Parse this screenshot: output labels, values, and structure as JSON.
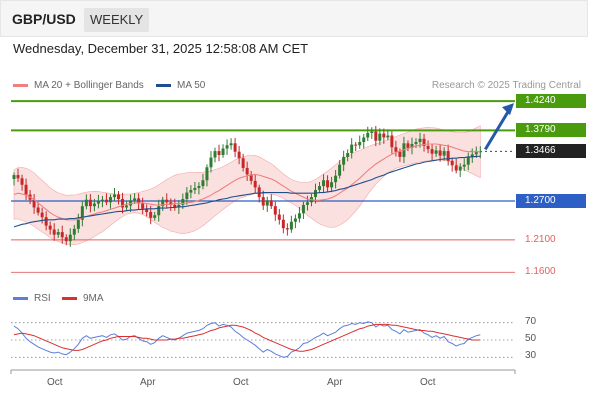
{
  "header": {
    "symbol": "GBP/USD",
    "timeframe": "WEEKLY",
    "timestamp": "Wednesday, December 31, 2025 12:58:08 AM CET"
  },
  "legend": {
    "ma20_label": "MA 20 + Bollinger Bands",
    "ma50_label": "MA 50",
    "copyright": "Research © 2025 Trading Central",
    "rsi_label": "RSI",
    "ma9_label": "9MA"
  },
  "colors": {
    "ma20": "#f08080",
    "ma50": "#1f4e8c",
    "resistance": "#4a9c0e",
    "support": "#2d5fc4",
    "lower": "#e06060",
    "up_candle": "#2e7d32",
    "down_candle": "#c62828",
    "arrow": "#2458a8",
    "rsi": "#5b7fdb",
    "rsi_ma": "#d93030"
  },
  "chart_data": [
    {
      "type": "candlestick",
      "instrument": "GBP/USD",
      "interval": "weekly",
      "ylim": [
        1.145,
        1.432
      ],
      "x_ticks": [
        "Oct",
        "Apr",
        "Oct",
        "Apr",
        "Oct"
      ],
      "last_price": 1.3466,
      "levels": [
        {
          "value": 1.424,
          "label": "1.4240",
          "kind": "resistance"
        },
        {
          "value": 1.379,
          "label": "1.3790",
          "kind": "resistance"
        },
        {
          "value": 1.3466,
          "label": "1.3466",
          "kind": "last"
        },
        {
          "value": 1.27,
          "label": "1.2700",
          "kind": "support"
        },
        {
          "value": 1.21,
          "label": "1.2100",
          "kind": "support_lower"
        },
        {
          "value": 1.16,
          "label": "1.1600",
          "kind": "support_lower"
        }
      ],
      "close": [
        1.31,
        1.305,
        1.295,
        1.28,
        1.272,
        1.26,
        1.252,
        1.245,
        1.232,
        1.226,
        1.218,
        1.222,
        1.214,
        1.208,
        1.218,
        1.227,
        1.241,
        1.262,
        1.272,
        1.262,
        1.266,
        1.27,
        1.272,
        1.268,
        1.276,
        1.28,
        1.273,
        1.26,
        1.263,
        1.271,
        1.274,
        1.266,
        1.258,
        1.253,
        1.244,
        1.248,
        1.262,
        1.272,
        1.268,
        1.264,
        1.26,
        1.264,
        1.273,
        1.283,
        1.287,
        1.29,
        1.293,
        1.302,
        1.322,
        1.337,
        1.347,
        1.341,
        1.351,
        1.356,
        1.359,
        1.346,
        1.336,
        1.321,
        1.311,
        1.301,
        1.291,
        1.276,
        1.263,
        1.271,
        1.262,
        1.249,
        1.241,
        1.228,
        1.226,
        1.238,
        1.243,
        1.251,
        1.264,
        1.268,
        1.276,
        1.287,
        1.293,
        1.302,
        1.291,
        1.299,
        1.309,
        1.326,
        1.338,
        1.344,
        1.357,
        1.356,
        1.361,
        1.368,
        1.375,
        1.377,
        1.363,
        1.374,
        1.368,
        1.371,
        1.353,
        1.346,
        1.338,
        1.359,
        1.352,
        1.358,
        1.361,
        1.366,
        1.355,
        1.35,
        1.343,
        1.348,
        1.34,
        1.347,
        1.332,
        1.325,
        1.317,
        1.323,
        1.326,
        1.338,
        1.342,
        1.346,
        1.3466
      ],
      "ma20": [
        1.28,
        1.282,
        1.281,
        1.279,
        1.276,
        1.272,
        1.267,
        1.262,
        1.257,
        1.252,
        1.248,
        1.245,
        1.243,
        1.241,
        1.241,
        1.241,
        1.242,
        1.244,
        1.246,
        1.248,
        1.25,
        1.252,
        1.253,
        1.255,
        1.257,
        1.259,
        1.261,
        1.263,
        1.265,
        1.266,
        1.267,
        1.267,
        1.267,
        1.266,
        1.265,
        1.264,
        1.264,
        1.264,
        1.265,
        1.265,
        1.266,
        1.266,
        1.266,
        1.267,
        1.268,
        1.269,
        1.271,
        1.273,
        1.276,
        1.279,
        1.283,
        1.286,
        1.29,
        1.294,
        1.298,
        1.302,
        1.305,
        1.307,
        1.309,
        1.31,
        1.311,
        1.31,
        1.308,
        1.306,
        1.304,
        1.301,
        1.297,
        1.293,
        1.289,
        1.285,
        1.282,
        1.279,
        1.276,
        1.273,
        1.272,
        1.271,
        1.271,
        1.272,
        1.273,
        1.275,
        1.278,
        1.282,
        1.286,
        1.29,
        1.295,
        1.3,
        1.305,
        1.311,
        1.317,
        1.322,
        1.327,
        1.331,
        1.335,
        1.339,
        1.342,
        1.345,
        1.347,
        1.349,
        1.351,
        1.353,
        1.355,
        1.356,
        1.357,
        1.358,
        1.358,
        1.358,
        1.357,
        1.356,
        1.355,
        1.353,
        1.351,
        1.349,
        1.347,
        1.346,
        1.346,
        1.346,
        1.346
      ],
      "ma50": [
        1.23,
        1.232,
        1.234,
        1.235,
        1.237,
        1.238,
        1.239,
        1.24,
        1.241,
        1.241,
        1.241,
        1.242,
        1.242,
        1.242,
        1.243,
        1.243,
        1.244,
        1.245,
        1.246,
        1.247,
        1.248,
        1.249,
        1.25,
        1.251,
        1.252,
        1.253,
        1.254,
        1.254,
        1.255,
        1.256,
        1.256,
        1.257,
        1.257,
        1.258,
        1.258,
        1.258,
        1.259,
        1.259,
        1.259,
        1.26,
        1.26,
        1.261,
        1.261,
        1.262,
        1.263,
        1.264,
        1.265,
        1.266,
        1.267,
        1.269,
        1.27,
        1.272,
        1.273,
        1.274,
        1.276,
        1.277,
        1.278,
        1.279,
        1.28,
        1.281,
        1.282,
        1.282,
        1.283,
        1.283,
        1.283,
        1.283,
        1.283,
        1.283,
        1.283,
        1.282,
        1.282,
        1.282,
        1.282,
        1.282,
        1.282,
        1.282,
        1.283,
        1.283,
        1.284,
        1.285,
        1.286,
        1.288,
        1.289,
        1.291,
        1.293,
        1.295,
        1.297,
        1.299,
        1.301,
        1.303,
        1.306,
        1.308,
        1.31,
        1.313,
        1.315,
        1.317,
        1.319,
        1.321,
        1.323,
        1.325,
        1.327,
        1.328,
        1.33,
        1.331,
        1.332,
        1.333,
        1.334,
        1.335,
        1.335,
        1.336,
        1.336,
        1.337,
        1.337,
        1.338,
        1.338,
        1.339,
        1.339
      ]
    },
    {
      "type": "line",
      "title": "RSI",
      "ylim": [
        20,
        80
      ],
      "y_ticks": [
        70,
        50,
        30
      ],
      "series": [
        {
          "name": "RSI",
          "values": [
            66,
            63,
            58,
            52,
            48,
            45,
            42,
            40,
            38,
            36,
            35,
            36,
            34,
            33,
            36,
            40,
            45,
            52,
            55,
            52,
            53,
            54,
            55,
            53,
            56,
            57,
            54,
            50,
            51,
            54,
            55,
            52,
            49,
            48,
            45,
            47,
            52,
            55,
            53,
            51,
            50,
            52,
            55,
            58,
            59,
            60,
            61,
            63,
            67,
            69,
            70,
            66,
            68,
            67,
            65,
            60,
            57,
            53,
            50,
            47,
            44,
            40,
            36,
            39,
            37,
            34,
            32,
            30,
            31,
            36,
            38,
            41,
            46,
            47,
            50,
            53,
            55,
            58,
            55,
            57,
            59,
            63,
            66,
            67,
            69,
            68,
            70,
            69,
            71,
            70,
            65,
            68,
            66,
            67,
            62,
            60,
            57,
            62,
            59,
            60,
            61,
            62,
            58,
            56,
            53,
            55,
            52,
            54,
            48,
            46,
            43,
            45,
            46,
            51,
            53,
            55,
            56
          ]
        },
        {
          "name": "9MA",
          "values": [
            56,
            57,
            58,
            57,
            56,
            55,
            53,
            51,
            49,
            47,
            45,
            43,
            41,
            40,
            39,
            38,
            38,
            39,
            41,
            43,
            45,
            47,
            49,
            50,
            52,
            53,
            54,
            54,
            54,
            54,
            54,
            53,
            52,
            52,
            51,
            50,
            50,
            50,
            50,
            51,
            51,
            52,
            52,
            53,
            54,
            55,
            56,
            57,
            59,
            61,
            62,
            64,
            65,
            66,
            67,
            67,
            66,
            65,
            63,
            61,
            58,
            56,
            53,
            51,
            49,
            47,
            45,
            43,
            41,
            39,
            38,
            37,
            37,
            38,
            39,
            41,
            43,
            45,
            47,
            49,
            51,
            53,
            55,
            57,
            59,
            61,
            63,
            64,
            66,
            67,
            68,
            68,
            68,
            68,
            67,
            67,
            66,
            65,
            64,
            63,
            62,
            61,
            61,
            60,
            60,
            59,
            58,
            57,
            56,
            55,
            54,
            53,
            52,
            51,
            50,
            50,
            50
          ]
        }
      ]
    }
  ]
}
